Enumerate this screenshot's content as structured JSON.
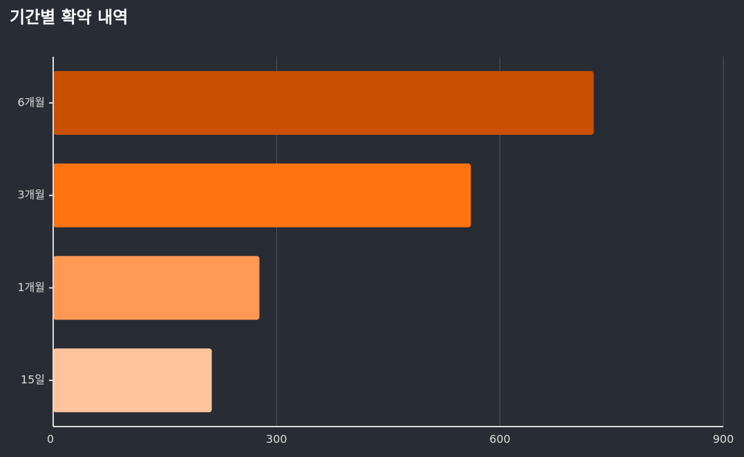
{
  "chart_data": {
    "type": "hbar",
    "title": "기간별 확약 내역",
    "categories": [
      "6개월",
      "3개월",
      "1개월",
      "15일"
    ],
    "values": [
      726,
      561,
      277,
      213
    ],
    "colors": [
      "#c85000",
      "#ff7410",
      "#ff9955",
      "#ffc49e"
    ],
    "xlim": [
      0,
      900
    ],
    "xticks": [
      0,
      300,
      600,
      900
    ],
    "grid": true
  }
}
